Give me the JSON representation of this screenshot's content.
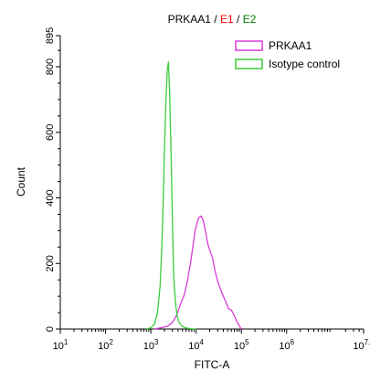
{
  "chart_data": {
    "type": "line",
    "title_parts": [
      {
        "text": "PRKAA1",
        "color": "#000000"
      },
      {
        "text": " / ",
        "color": "#000000"
      },
      {
        "text": "E1",
        "color": "#ff0000"
      },
      {
        "text": " / ",
        "color": "#000000"
      },
      {
        "text": "E2",
        "color": "#008000"
      }
    ],
    "xlabel": "FITC-A",
    "ylabel": "Count",
    "x_scale": "log",
    "xlim": [
      10,
      50118723
    ],
    "ylim": [
      0,
      895
    ],
    "x_ticks": [
      {
        "value": 10,
        "base": "10",
        "exp": "1"
      },
      {
        "value": 100,
        "base": "10",
        "exp": "2"
      },
      {
        "value": 1000,
        "base": "10",
        "exp": "3"
      },
      {
        "value": 10000,
        "base": "10",
        "exp": "4"
      },
      {
        "value": 100000,
        "base": "10",
        "exp": "5"
      },
      {
        "value": 1000000,
        "base": "10",
        "exp": "6"
      },
      {
        "value": 50118723,
        "base": "10",
        "exp": "7.7"
      }
    ],
    "y_ticks": [
      0,
      200,
      400,
      600,
      800,
      895
    ],
    "grid": false,
    "legend_position": "top-right",
    "series": [
      {
        "name": "PRKAA1",
        "color": "#d93cd9",
        "x": [
          1200,
          1700,
          2300,
          3000,
          3700,
          4500,
          5500,
          6500,
          7500,
          8500,
          9500,
          10500,
          11500,
          13000,
          14500,
          16000,
          18000,
          20000,
          23000,
          26000,
          30000,
          35000,
          40000,
          46000,
          52000,
          60000,
          70000,
          80000,
          90000,
          100000
        ],
        "y": [
          0,
          4,
          8,
          20,
          42,
          75,
          105,
          150,
          200,
          252,
          300,
          325,
          340,
          345,
          330,
          300,
          262,
          240,
          218,
          180,
          145,
          120,
          100,
          80,
          62,
          58,
          40,
          22,
          10,
          0
        ]
      },
      {
        "name": "Isotype control",
        "color": "#3ccc3c",
        "x": [
          800,
          1000,
          1200,
          1400,
          1600,
          1750,
          1900,
          2000,
          2150,
          2300,
          2450,
          2600,
          2800,
          3000,
          3200,
          3500,
          3800,
          4200,
          5000,
          6000,
          8000,
          10000
        ],
        "y": [
          0,
          4,
          15,
          50,
          130,
          250,
          420,
          550,
          690,
          790,
          815,
          720,
          540,
          330,
          160,
          80,
          40,
          20,
          8,
          3,
          1,
          0
        ]
      }
    ]
  }
}
